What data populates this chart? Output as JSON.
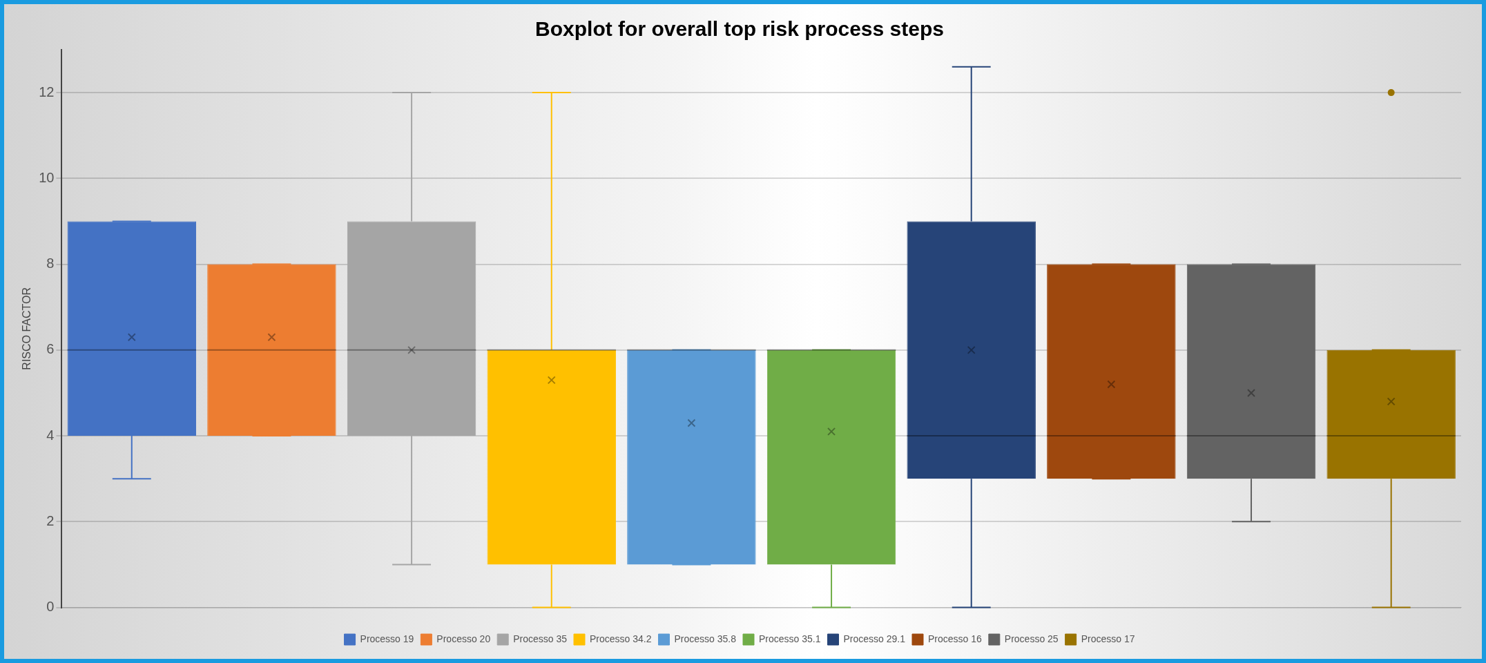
{
  "chart_data": {
    "type": "box",
    "title": "Boxplot for overall top risk process steps",
    "ylabel": "RISCO FACTOR",
    "categories": [
      null,
      null,
      null,
      null,
      null,
      null,
      null,
      null,
      null,
      null
    ],
    "ylim": [
      0,
      13
    ],
    "yticks": [
      0,
      2,
      4,
      6,
      8,
      10,
      12
    ],
    "grid": "y",
    "legend": "bottom",
    "series": [
      {
        "name": "Processo 19",
        "color": "#4472c4",
        "boxes": [
          {
            "low": 3,
            "q1": 4,
            "median": 6,
            "q3": 9,
            "high": 9,
            "mean": 6.3
          },
          null,
          null,
          null,
          null,
          null,
          null,
          null,
          null,
          null
        ]
      },
      {
        "name": "Processo 20",
        "color": "#ed7d31",
        "boxes": [
          null,
          {
            "low": 4,
            "q1": 4,
            "median": 6,
            "q3": 8,
            "high": 8,
            "mean": 6.3
          },
          null,
          null,
          null,
          null,
          null,
          null,
          null,
          null
        ]
      },
      {
        "name": "Processo 35",
        "color": "#a5a5a5",
        "boxes": [
          null,
          null,
          {
            "low": 1,
            "q1": 4,
            "median": 6,
            "q3": 9,
            "high": 12,
            "mean": 6
          },
          null,
          null,
          null,
          null,
          null,
          null,
          null
        ]
      },
      {
        "name": "Processo 34.2",
        "color": "#ffc000",
        "boxes": [
          null,
          null,
          null,
          {
            "low": 0,
            "q1": 1,
            "median": 6,
            "q3": 6,
            "high": 12,
            "mean": 5.3
          },
          null,
          null,
          null,
          null,
          null,
          null
        ]
      },
      {
        "name": "Processo 35.8",
        "color": "#5b9bd5",
        "boxes": [
          null,
          null,
          null,
          null,
          {
            "low": 1,
            "q1": 1,
            "median": 6,
            "q3": 6,
            "high": 6,
            "mean": 4.3
          },
          null,
          null,
          null,
          null,
          null
        ]
      },
      {
        "name": "Processo 35.1",
        "color": "#70ad47",
        "boxes": [
          null,
          null,
          null,
          null,
          null,
          {
            "low": 0,
            "q1": 1,
            "median": 6,
            "q3": 6,
            "high": 6,
            "mean": 4.1
          },
          null,
          null,
          null,
          null
        ]
      },
      {
        "name": "Processo 29.1",
        "color": "#264478",
        "boxes": [
          null,
          null,
          null,
          null,
          null,
          null,
          {
            "low": 0,
            "q1": 3,
            "median": 4,
            "q3": 9,
            "high": 12.6,
            "mean": 6
          },
          null,
          null,
          null
        ]
      },
      {
        "name": "Processo 16",
        "color": "#9e480e",
        "boxes": [
          null,
          null,
          null,
          null,
          null,
          null,
          null,
          {
            "low": 3,
            "q1": 3,
            "median": 4,
            "q3": 8,
            "high": 8,
            "mean": 5.2
          },
          null,
          null
        ]
      },
      {
        "name": "Processo 25",
        "color": "#636363",
        "boxes": [
          null,
          null,
          null,
          null,
          null,
          null,
          null,
          null,
          {
            "low": 2,
            "q1": 3,
            "median": 4,
            "q3": 8,
            "high": 8,
            "mean": 5
          },
          null
        ]
      },
      {
        "name": "Processo 17",
        "color": "#997300",
        "boxes": [
          null,
          null,
          null,
          null,
          null,
          null,
          null,
          null,
          null,
          {
            "low": 0,
            "q1": 3,
            "median": 4,
            "q3": 6,
            "high": 6,
            "mean": 4.8,
            "outliers": [
              12
            ]
          }
        ]
      }
    ]
  }
}
